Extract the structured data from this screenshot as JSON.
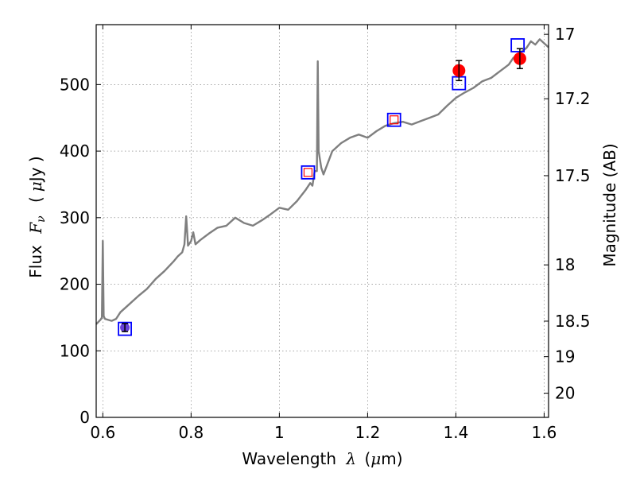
{
  "chart_data": {
    "type": "scatter",
    "xlabel": "Wavelength",
    "xlabel_symbol": "λ",
    "xlabel_unit_open": "(",
    "xlabel_unit_mu": "μ",
    "xlabel_unit_rest": "m)",
    "ylabel": "Flux",
    "ylabel_symbol": "F",
    "ylabel_subscript": "ν",
    "ylabel_unit_open": "(",
    "ylabel_unit_mu": "μ",
    "ylabel_unit_rest": "Jy )",
    "y2label": "Magnitude (AB)",
    "xlim": [
      0.585,
      1.61
    ],
    "ylim": [
      0,
      590
    ],
    "grid": true,
    "xticks": [
      0.6,
      0.8,
      1.0,
      1.2,
      1.4,
      1.6
    ],
    "xtick_labels": [
      "0.6",
      "0.8",
      "1",
      "1.2",
      "1.4",
      "1.6"
    ],
    "yticks": [
      0,
      100,
      200,
      300,
      400,
      500
    ],
    "ytick_labels": [
      "0",
      "100",
      "200",
      "300",
      "400",
      "500"
    ],
    "y2ticks": [
      17.0,
      17.2,
      17.5,
      18.0,
      18.5,
      19.0,
      20.0
    ],
    "y2tick_labels": [
      "17",
      "17.2",
      "17.5",
      "18",
      "18.5",
      "19",
      "20"
    ],
    "colors": {
      "spectrum": "#7f7f7f",
      "photometry_point": "#ff0000",
      "photometry_point_blue": "#4b1fd1",
      "model_square": "#0000ff",
      "model_square_inner": "#ff0000"
    },
    "spectrum": {
      "x": [
        0.585,
        0.595,
        0.598,
        0.6,
        0.602,
        0.605,
        0.62,
        0.63,
        0.64,
        0.66,
        0.68,
        0.7,
        0.72,
        0.74,
        0.76,
        0.77,
        0.78,
        0.785,
        0.789,
        0.793,
        0.8,
        0.805,
        0.81,
        0.82,
        0.84,
        0.86,
        0.88,
        0.9,
        0.92,
        0.94,
        0.96,
        0.98,
        1.0,
        1.02,
        1.04,
        1.06,
        1.07,
        1.075,
        1.08,
        1.085,
        1.087,
        1.089,
        1.095,
        1.1,
        1.12,
        1.14,
        1.16,
        1.18,
        1.2,
        1.22,
        1.24,
        1.26,
        1.28,
        1.3,
        1.32,
        1.34,
        1.36,
        1.38,
        1.4,
        1.42,
        1.44,
        1.46,
        1.48,
        1.5,
        1.52,
        1.53,
        1.54,
        1.55,
        1.56,
        1.57,
        1.58,
        1.59,
        1.6,
        1.61
      ],
      "y": [
        140,
        147,
        150,
        265,
        152,
        148,
        145,
        148,
        158,
        170,
        182,
        193,
        208,
        220,
        234,
        242,
        248,
        260,
        302,
        258,
        265,
        278,
        260,
        266,
        276,
        285,
        288,
        300,
        292,
        288,
        296,
        305,
        315,
        312,
        325,
        342,
        352,
        348,
        370,
        370,
        535,
        400,
        375,
        365,
        400,
        412,
        420,
        425,
        420,
        430,
        438,
        442,
        444,
        440,
        445,
        450,
        455,
        468,
        480,
        488,
        495,
        505,
        510,
        520,
        530,
        540,
        545,
        550,
        555,
        565,
        560,
        568,
        562,
        556
      ]
    },
    "photometry": {
      "x": [
        0.65,
        1.407,
        1.545
      ],
      "y": [
        135,
        521,
        539
      ],
      "yerr": [
        6,
        15,
        15
      ]
    },
    "model_photometry": {
      "x": [
        0.65,
        1.065,
        1.26,
        1.407,
        1.54
      ],
      "y": [
        133,
        368,
        447,
        502,
        559
      ]
    }
  }
}
